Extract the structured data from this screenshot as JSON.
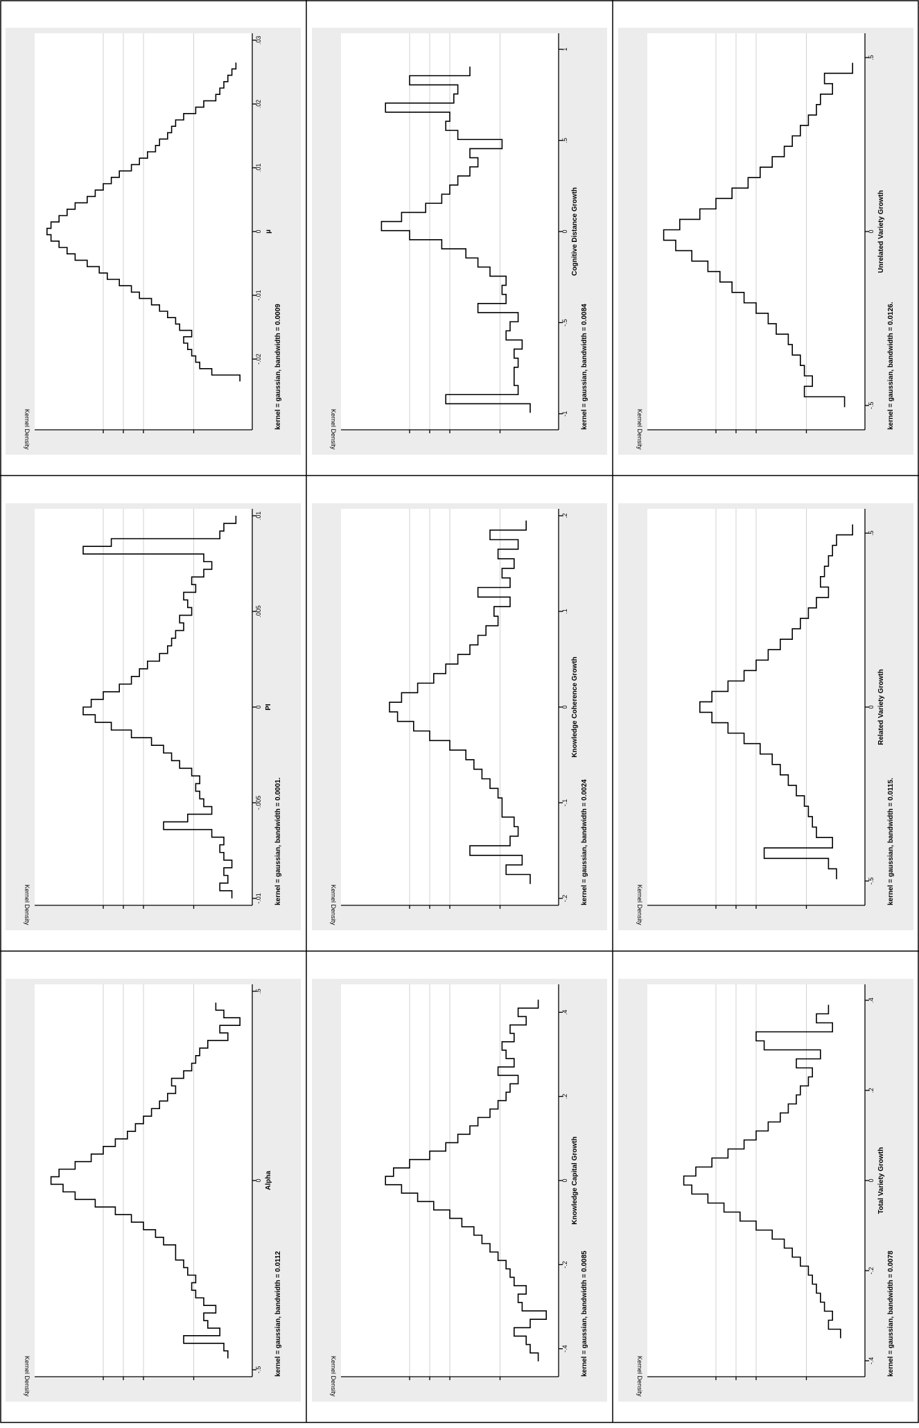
{
  "figure": {
    "layout": "3x3 grid of rotated kernel density plots"
  },
  "chart_data": [
    {
      "type": "line",
      "id": "alpha",
      "xlabel": "Alpha",
      "ylabel": "Kernel Density",
      "note": "kernel = gaussian, bandwidth = 0.0112",
      "xlim": [
        -0.5,
        0.5
      ],
      "xticks": [
        -0.5,
        0,
        0.5
      ],
      "xtick_labels": [
        "-.5",
        "0",
        ".5"
      ],
      "grid": true,
      "ylim": [
        0,
        1
      ],
      "x": [
        -0.46,
        -0.44,
        -0.42,
        -0.4,
        -0.38,
        -0.36,
        -0.34,
        -0.32,
        -0.3,
        -0.28,
        -0.26,
        -0.24,
        -0.22,
        -0.2,
        -0.18,
        -0.16,
        -0.14,
        -0.12,
        -0.1,
        -0.08,
        -0.06,
        -0.04,
        -0.02,
        0,
        0.02,
        0.04,
        0.06,
        0.08,
        0.1,
        0.12,
        0.14,
        0.16,
        0.18,
        0.2,
        0.22,
        0.24,
        0.26,
        0.28,
        0.3,
        0.32,
        0.34,
        0.36,
        0.38,
        0.4,
        0.42,
        0.44,
        0.46
      ],
      "y": [
        0.08,
        0.1,
        0.3,
        0.12,
        0.18,
        0.2,
        0.14,
        0.2,
        0.24,
        0.26,
        0.24,
        0.28,
        0.3,
        0.34,
        0.34,
        0.4,
        0.44,
        0.5,
        0.56,
        0.64,
        0.74,
        0.84,
        0.9,
        0.96,
        0.92,
        0.84,
        0.76,
        0.7,
        0.64,
        0.58,
        0.54,
        0.5,
        0.46,
        0.42,
        0.38,
        0.34,
        0.36,
        0.3,
        0.26,
        0.24,
        0.22,
        0.18,
        0.08,
        0.12,
        0.02,
        0.1,
        0.14
      ]
    },
    {
      "type": "line",
      "id": "pi",
      "xlabel": "PI",
      "ylabel": "Kernel Density",
      "note": "kernel = gaussian, bandwidth = 0.0001.",
      "xlim": [
        -0.01,
        0.01
      ],
      "xticks": [
        -0.01,
        -0.005,
        0,
        0.005,
        0.01
      ],
      "xtick_labels": [
        "-.01",
        "-.005",
        "0",
        ".005",
        ".01"
      ],
      "grid": true,
      "ylim": [
        0,
        1
      ],
      "x": [
        -0.0098,
        -0.0094,
        -0.009,
        -0.0086,
        -0.0082,
        -0.0078,
        -0.0074,
        -0.007,
        -0.0066,
        -0.0062,
        -0.0058,
        -0.0054,
        -0.005,
        -0.0046,
        -0.0042,
        -0.0038,
        -0.0034,
        -0.003,
        -0.0026,
        -0.0022,
        -0.0018,
        -0.0014,
        -0.001,
        -0.0006,
        -0.0002,
        0.0002,
        0.0006,
        0.001,
        0.0014,
        0.0018,
        0.0022,
        0.0026,
        0.003,
        0.0034,
        0.0038,
        0.0042,
        0.0046,
        0.005,
        0.0054,
        0.0058,
        0.0062,
        0.0066,
        0.007,
        0.0074,
        0.0078,
        0.0082,
        0.0086,
        0.009,
        0.0094,
        0.0098
      ],
      "y": [
        0.06,
        0.12,
        0.08,
        0.1,
        0.06,
        0.1,
        0.12,
        0.1,
        0.16,
        0.4,
        0.28,
        0.16,
        0.2,
        0.22,
        0.24,
        0.22,
        0.26,
        0.32,
        0.36,
        0.4,
        0.46,
        0.56,
        0.66,
        0.74,
        0.8,
        0.76,
        0.7,
        0.62,
        0.56,
        0.52,
        0.48,
        0.42,
        0.38,
        0.36,
        0.34,
        0.3,
        0.32,
        0.26,
        0.28,
        0.3,
        0.24,
        0.26,
        0.2,
        0.16,
        0.2,
        0.8,
        0.66,
        0.12,
        0.1,
        0.04
      ]
    },
    {
      "type": "line",
      "id": "mu",
      "xlabel": "µ",
      "ylabel": "Kernel Density",
      "note": "kernel = gaussian, bandwidth = 0.0009",
      "xlim": [
        -0.03,
        0.03
      ],
      "xticks": [
        -0.02,
        -0.01,
        0,
        0.01,
        0.02,
        0.03
      ],
      "xtick_labels": [
        "-.02",
        "-.01",
        "0",
        ".01",
        ".02",
        ".03"
      ],
      "grid": true,
      "ylim": [
        0,
        1
      ],
      "x": [
        -0.023,
        -0.022,
        -0.021,
        -0.02,
        -0.019,
        -0.018,
        -0.017,
        -0.016,
        -0.015,
        -0.014,
        -0.013,
        -0.012,
        -0.011,
        -0.01,
        -0.009,
        -0.008,
        -0.007,
        -0.006,
        -0.005,
        -0.004,
        -0.003,
        -0.002,
        -0.001,
        0,
        0.001,
        0.002,
        0.003,
        0.004,
        0.005,
        0.006,
        0.007,
        0.008,
        0.009,
        0.01,
        0.011,
        0.012,
        0.013,
        0.014,
        0.015,
        0.016,
        0.017,
        0.018,
        0.019,
        0.02,
        0.021,
        0.022,
        0.023,
        0.024,
        0.025,
        0.026
      ],
      "y": [
        0.02,
        0.16,
        0.22,
        0.24,
        0.26,
        0.28,
        0.3,
        0.26,
        0.32,
        0.34,
        0.38,
        0.42,
        0.46,
        0.52,
        0.56,
        0.62,
        0.68,
        0.72,
        0.78,
        0.84,
        0.88,
        0.92,
        0.96,
        0.98,
        0.96,
        0.92,
        0.88,
        0.84,
        0.78,
        0.74,
        0.7,
        0.66,
        0.62,
        0.56,
        0.52,
        0.48,
        0.44,
        0.42,
        0.38,
        0.36,
        0.34,
        0.3,
        0.24,
        0.2,
        0.14,
        0.12,
        0.1,
        0.08,
        0.06,
        0.04
      ]
    },
    {
      "type": "line",
      "id": "kcap",
      "xlabel": "Knowledge Capital Growth",
      "ylabel": "Kernel Density",
      "note": "kernel = gaussian, bandwidth = 0.0085",
      "xlim": [
        -0.45,
        0.45
      ],
      "xticks": [
        -0.4,
        -0.2,
        0,
        0.2,
        0.4
      ],
      "xtick_labels": [
        "-.4",
        "-.2",
        "0",
        ".2",
        ".4"
      ],
      "grid": true,
      "ylim": [
        0,
        1
      ],
      "x": [
        -0.42,
        -0.4,
        -0.38,
        -0.36,
        -0.34,
        -0.32,
        -0.3,
        -0.28,
        -0.26,
        -0.24,
        -0.22,
        -0.2,
        -0.18,
        -0.16,
        -0.14,
        -0.12,
        -0.1,
        -0.08,
        -0.06,
        -0.04,
        -0.02,
        0,
        0.02,
        0.04,
        0.06,
        0.08,
        0.1,
        0.12,
        0.14,
        0.16,
        0.18,
        0.2,
        0.22,
        0.24,
        0.26,
        0.28,
        0.3,
        0.32,
        0.34,
        0.36,
        0.38,
        0.4,
        0.42
      ],
      "y": [
        0.06,
        0.1,
        0.12,
        0.18,
        0.1,
        0.02,
        0.14,
        0.16,
        0.12,
        0.18,
        0.2,
        0.22,
        0.26,
        0.3,
        0.34,
        0.38,
        0.44,
        0.5,
        0.58,
        0.66,
        0.74,
        0.82,
        0.78,
        0.7,
        0.6,
        0.52,
        0.46,
        0.4,
        0.36,
        0.3,
        0.26,
        0.22,
        0.2,
        0.16,
        0.26,
        0.18,
        0.22,
        0.24,
        0.18,
        0.2,
        0.12,
        0.16,
        0.06
      ]
    },
    {
      "type": "line",
      "id": "kcoh",
      "xlabel": "Knowledge Coherence Growth",
      "ylabel": "Kernel Density",
      "note": "kernel = gaussian, bandwidth = 0.0024",
      "xlim": [
        -0.2,
        0.2
      ],
      "xticks": [
        -0.2,
        -0.1,
        0,
        0.1,
        0.2
      ],
      "xtick_labels": [
        "-.2",
        "-.1",
        "0",
        ".1",
        ".2"
      ],
      "grid": true,
      "ylim": [
        0,
        1
      ],
      "x": [
        -0.18,
        -0.17,
        -0.16,
        -0.15,
        -0.14,
        -0.13,
        -0.12,
        -0.11,
        -0.1,
        -0.09,
        -0.08,
        -0.07,
        -0.06,
        -0.05,
        -0.04,
        -0.03,
        -0.02,
        -0.01,
        0,
        0.01,
        0.02,
        0.03,
        0.04,
        0.05,
        0.06,
        0.07,
        0.08,
        0.09,
        0.1,
        0.11,
        0.12,
        0.13,
        0.14,
        0.15,
        0.16,
        0.17,
        0.18,
        0.19
      ],
      "y": [
        0.1,
        0.22,
        0.14,
        0.4,
        0.2,
        0.16,
        0.18,
        0.24,
        0.24,
        0.26,
        0.3,
        0.34,
        0.38,
        0.42,
        0.5,
        0.6,
        0.68,
        0.76,
        0.8,
        0.74,
        0.66,
        0.58,
        0.52,
        0.46,
        0.4,
        0.36,
        0.32,
        0.26,
        0.28,
        0.2,
        0.36,
        0.2,
        0.24,
        0.18,
        0.26,
        0.16,
        0.3,
        0.12
      ]
    },
    {
      "type": "line",
      "id": "cogdist",
      "xlabel": "Cognitive Distance Growth",
      "ylabel": "Kernel Density",
      "note": "kernel = gaussian, bandwidth = 0.0084",
      "xlim": [
        -1.05,
        1.05
      ],
      "xticks": [
        -1,
        -0.5,
        0,
        0.5,
        1
      ],
      "xtick_labels": [
        "-1",
        "-.5",
        "0",
        ".5",
        "1"
      ],
      "grid": true,
      "ylim": [
        0,
        1
      ],
      "x": [
        -0.97,
        -0.92,
        -0.87,
        -0.82,
        -0.77,
        -0.72,
        -0.67,
        -0.62,
        -0.57,
        -0.52,
        -0.47,
        -0.42,
        -0.37,
        -0.32,
        -0.27,
        -0.22,
        -0.17,
        -0.12,
        -0.07,
        -0.02,
        0.03,
        0.08,
        0.13,
        0.18,
        0.23,
        0.28,
        0.33,
        0.38,
        0.43,
        0.48,
        0.53,
        0.58,
        0.63,
        0.68,
        0.73,
        0.78,
        0.83,
        0.88
      ],
      "y": [
        0.1,
        0.52,
        0.16,
        0.18,
        0.18,
        0.16,
        0.18,
        0.14,
        0.22,
        0.2,
        0.16,
        0.36,
        0.22,
        0.24,
        0.22,
        0.3,
        0.36,
        0.42,
        0.54,
        0.7,
        0.84,
        0.74,
        0.62,
        0.54,
        0.5,
        0.46,
        0.4,
        0.36,
        0.4,
        0.24,
        0.46,
        0.52,
        0.5,
        0.82,
        0.48,
        0.46,
        0.7,
        0.4
      ]
    },
    {
      "type": "line",
      "id": "tvar",
      "xlabel": "Total Variety Growth",
      "ylabel": "Kernel Density",
      "note": "kernel = gaussian, bandwidth = 0.0078",
      "xlim": [
        -0.42,
        0.42
      ],
      "xticks": [
        -0.4,
        -0.2,
        0,
        0.2,
        0.4
      ],
      "xtick_labels": [
        "-.4",
        "-.2",
        "0",
        ".2",
        ".4"
      ],
      "grid": true,
      "ylim": [
        0,
        1
      ],
      "x": [
        -0.34,
        -0.32,
        -0.3,
        -0.28,
        -0.26,
        -0.24,
        -0.22,
        -0.2,
        -0.18,
        -0.16,
        -0.14,
        -0.12,
        -0.1,
        -0.08,
        -0.06,
        -0.04,
        -0.02,
        0,
        0.02,
        0.04,
        0.06,
        0.08,
        0.1,
        0.12,
        0.14,
        0.16,
        0.18,
        0.2,
        0.22,
        0.24,
        0.26,
        0.28,
        0.3,
        0.32,
        0.34,
        0.36,
        0.38
      ],
      "y": [
        0.08,
        0.14,
        0.12,
        0.16,
        0.18,
        0.2,
        0.22,
        0.24,
        0.28,
        0.32,
        0.36,
        0.42,
        0.5,
        0.58,
        0.66,
        0.74,
        0.82,
        0.86,
        0.8,
        0.72,
        0.64,
        0.56,
        0.5,
        0.44,
        0.38,
        0.34,
        0.3,
        0.28,
        0.24,
        0.22,
        0.3,
        0.18,
        0.46,
        0.5,
        0.12,
        0.2,
        0.14
      ]
    },
    {
      "type": "line",
      "id": "rvar",
      "xlabel": "Related Variety Growth",
      "ylabel": "Kernel Density",
      "note": "kernel = gaussian, bandwidth = 0.0115.",
      "xlim": [
        -0.55,
        0.55
      ],
      "xticks": [
        -0.5,
        0,
        0.5
      ],
      "xtick_labels": [
        "-.5",
        "0",
        ".5"
      ],
      "grid": true,
      "ylim": [
        0,
        1
      ],
      "x": [
        -0.48,
        -0.45,
        -0.42,
        -0.39,
        -0.36,
        -0.33,
        -0.3,
        -0.27,
        -0.24,
        -0.21,
        -0.18,
        -0.15,
        -0.12,
        -0.09,
        -0.06,
        -0.03,
        0,
        0.03,
        0.06,
        0.09,
        0.12,
        0.15,
        0.18,
        0.21,
        0.24,
        0.27,
        0.3,
        0.33,
        0.36,
        0.39,
        0.42,
        0.45,
        0.48,
        0.51
      ],
      "y": [
        0.1,
        0.14,
        0.46,
        0.12,
        0.2,
        0.22,
        0.24,
        0.26,
        0.3,
        0.34,
        0.38,
        0.42,
        0.48,
        0.56,
        0.64,
        0.72,
        0.78,
        0.72,
        0.64,
        0.56,
        0.5,
        0.44,
        0.38,
        0.32,
        0.28,
        0.24,
        0.2,
        0.14,
        0.18,
        0.16,
        0.14,
        0.12,
        0.1,
        0.02
      ]
    },
    {
      "type": "line",
      "id": "uvar",
      "xlabel": "Unrelated Variety Growth",
      "ylabel": "Kernel Density",
      "note": "kernel = gaussian, bandwidth = 0.0126.",
      "xlim": [
        -0.55,
        0.55
      ],
      "xticks": [
        -0.5,
        0,
        0.5
      ],
      "xtick_labels": [
        "-.5",
        "0",
        ".5"
      ],
      "grid": true,
      "ylim": [
        0,
        1
      ],
      "x": [
        -0.49,
        -0.46,
        -0.43,
        -0.4,
        -0.37,
        -0.34,
        -0.31,
        -0.28,
        -0.25,
        -0.22,
        -0.19,
        -0.16,
        -0.13,
        -0.1,
        -0.07,
        -0.04,
        -0.01,
        0.02,
        0.05,
        0.08,
        0.11,
        0.14,
        0.17,
        0.2,
        0.23,
        0.26,
        0.29,
        0.32,
        0.35,
        0.38,
        0.41,
        0.44,
        0.47
      ],
      "y": [
        0.06,
        0.26,
        0.22,
        0.26,
        0.28,
        0.32,
        0.34,
        0.4,
        0.44,
        0.5,
        0.56,
        0.62,
        0.68,
        0.74,
        0.82,
        0.9,
        0.96,
        0.88,
        0.78,
        0.7,
        0.62,
        0.54,
        0.48,
        0.42,
        0.36,
        0.32,
        0.28,
        0.24,
        0.2,
        0.18,
        0.12,
        0.16,
        0.02
      ]
    }
  ]
}
